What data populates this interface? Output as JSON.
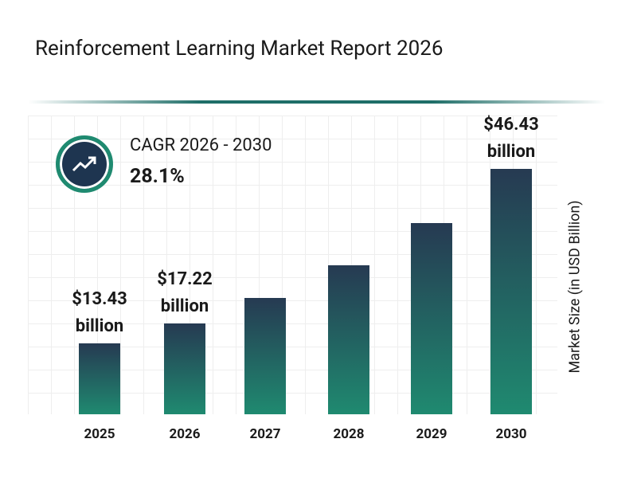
{
  "chart_data": {
    "type": "bar",
    "title": "Reinforcement Learning Market Report 2026",
    "categories": [
      "2025",
      "2026",
      "2027",
      "2028",
      "2029",
      "2030"
    ],
    "values": [
      13.43,
      17.22,
      22.06,
      28.26,
      36.2,
      46.43
    ],
    "value_labels": [
      "$13.43 billion",
      "$17.22 billion",
      null,
      null,
      null,
      "$46.43 billion"
    ],
    "y_label": "Market Size (in USD Billion)",
    "annotation": {
      "label": "CAGR 2026 - 2030",
      "value": "28.1%"
    },
    "color_top": "#263a52",
    "color_bottom": "#1f8a70"
  }
}
